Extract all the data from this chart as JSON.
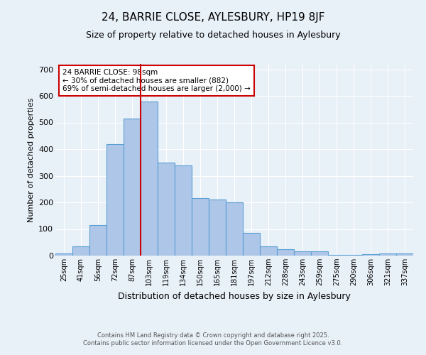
{
  "title1": "24, BARRIE CLOSE, AYLESBURY, HP19 8JF",
  "title2": "Size of property relative to detached houses in Aylesbury",
  "xlabel": "Distribution of detached houses by size in Aylesbury",
  "ylabel": "Number of detached properties",
  "categories": [
    "25sqm",
    "41sqm",
    "56sqm",
    "72sqm",
    "87sqm",
    "103sqm",
    "119sqm",
    "134sqm",
    "150sqm",
    "165sqm",
    "181sqm",
    "197sqm",
    "212sqm",
    "228sqm",
    "243sqm",
    "259sqm",
    "275sqm",
    "290sqm",
    "306sqm",
    "321sqm",
    "337sqm"
  ],
  "values": [
    8,
    35,
    115,
    420,
    515,
    580,
    350,
    340,
    215,
    210,
    200,
    85,
    35,
    25,
    15,
    15,
    2,
    2,
    5,
    8,
    8
  ],
  "bar_color": "#aec6e8",
  "bar_edge_color": "#5a9fd4",
  "background_color": "#e8f0f8",
  "grid_color": "#ffffff",
  "annotation_text": "24 BARRIE CLOSE: 98sqm\n← 30% of detached houses are smaller (882)\n69% of semi-detached houses are larger (2,000) →",
  "annotation_box_color": "#ffffff",
  "annotation_box_edge": "#cc0000",
  "red_line_color": "#cc0000",
  "footer1": "Contains HM Land Registry data © Crown copyright and database right 2025.",
  "footer2": "Contains public sector information licensed under the Open Government Licence v3.0.",
  "ylim": [
    0,
    720
  ],
  "yticks": [
    0,
    100,
    200,
    300,
    400,
    500,
    600,
    700
  ]
}
